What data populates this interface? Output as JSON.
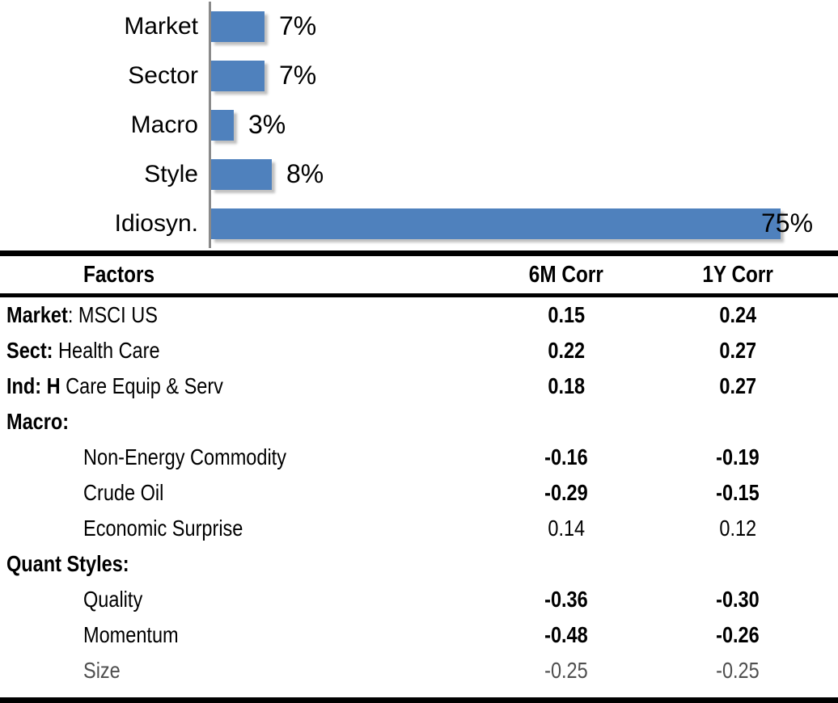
{
  "chart": {
    "bar_color": "#4F81BD",
    "axis_color": "#8a8a8a",
    "bars": [
      {
        "category": "Market",
        "value": 7,
        "label": "7%"
      },
      {
        "category": "Sector",
        "value": 7,
        "label": "7%"
      },
      {
        "category": "Macro",
        "value": 3,
        "label": "3%"
      },
      {
        "category": "Style",
        "value": 8,
        "label": "8%"
      },
      {
        "category": "Idiosyn.",
        "value": 75,
        "label": "75%"
      }
    ]
  },
  "table": {
    "headers": {
      "factors": "Factors",
      "c6": "6M Corr",
      "c1": "1Y Corr"
    },
    "rows": [
      {
        "bold": "Market",
        "text": ": MSCI US",
        "indent": false,
        "v6": "0.15",
        "v1": "0.24",
        "emph": true,
        "muted": false
      },
      {
        "bold": "Sect:",
        "text": " Health Care",
        "indent": false,
        "v6": "0.22",
        "v1": "0.27",
        "emph": true,
        "muted": false
      },
      {
        "bold": "Ind: H",
        "text": " Care Equip & Serv",
        "indent": false,
        "v6": "0.18",
        "v1": "0.27",
        "emph": true,
        "muted": false
      },
      {
        "bold": "Macro:",
        "text": "",
        "indent": false,
        "v6": "",
        "v1": "",
        "emph": false,
        "muted": false
      },
      {
        "bold": "",
        "text": "Non-Energy Commodity",
        "indent": true,
        "v6": "-0.16",
        "v1": "-0.19",
        "emph": true,
        "muted": false
      },
      {
        "bold": "",
        "text": "Crude Oil",
        "indent": true,
        "v6": "-0.29",
        "v1": "-0.15",
        "emph": true,
        "muted": false
      },
      {
        "bold": "",
        "text": "Economic Surprise",
        "indent": true,
        "v6": "0.14",
        "v1": "0.12",
        "emph": false,
        "muted": false
      },
      {
        "bold": "Quant Styles:",
        "text": "",
        "indent": false,
        "v6": "",
        "v1": "",
        "emph": false,
        "muted": false
      },
      {
        "bold": "",
        "text": "Quality",
        "indent": true,
        "v6": "-0.36",
        "v1": "-0.30",
        "emph": true,
        "muted": false
      },
      {
        "bold": "",
        "text": "Momentum",
        "indent": true,
        "v6": "-0.48",
        "v1": "-0.26",
        "emph": true,
        "muted": false
      },
      {
        "bold": "",
        "text": "Size",
        "indent": true,
        "v6": "-0.25",
        "v1": "-0.25",
        "emph": false,
        "muted": true
      }
    ]
  },
  "chart_data": [
    {
      "type": "bar",
      "orientation": "horizontal",
      "categories": [
        "Market",
        "Sector",
        "Macro",
        "Style",
        "Idiosyn."
      ],
      "values": [
        7,
        7,
        3,
        8,
        75
      ],
      "value_labels": [
        "7%",
        "7%",
        "3%",
        "8%",
        "75%"
      ],
      "unit": "%",
      "xlim": [
        0,
        80
      ],
      "grid": false,
      "legend": false,
      "bar_color": "#4F81BD",
      "title": "",
      "xlabel": "",
      "ylabel": ""
    },
    {
      "type": "table",
      "columns": [
        "Factors",
        "6M Corr",
        "1Y Corr"
      ],
      "rows": [
        [
          "Market: MSCI US",
          0.15,
          0.24
        ],
        [
          "Sect: Health Care",
          0.22,
          0.27
        ],
        [
          "Ind: H Care Equip & Serv",
          0.18,
          0.27
        ],
        [
          "Macro:",
          null,
          null
        ],
        [
          "Non-Energy Commodity",
          -0.16,
          -0.19
        ],
        [
          "Crude Oil",
          -0.29,
          -0.15
        ],
        [
          "Economic Surprise",
          0.14,
          0.12
        ],
        [
          "Quant Styles:",
          null,
          null
        ],
        [
          "Quality",
          -0.36,
          -0.3
        ],
        [
          "Momentum",
          -0.48,
          -0.26
        ],
        [
          "Size",
          -0.25,
          -0.25
        ]
      ]
    }
  ]
}
